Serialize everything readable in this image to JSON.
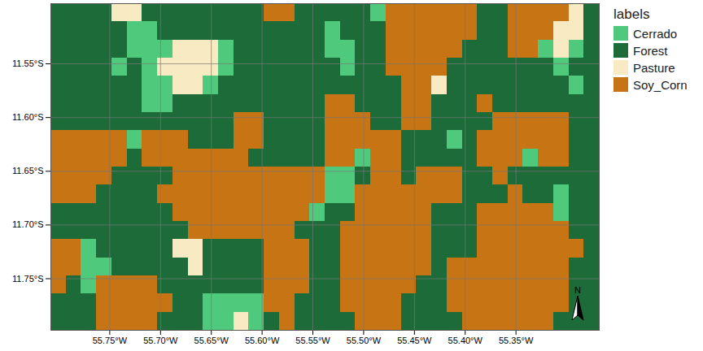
{
  "chart_data": {
    "type": "raster",
    "legend_title": "labels",
    "categories": [
      "Cerrado",
      "Forest",
      "Pasture",
      "Soy_Corn"
    ],
    "colors": [
      "#4fca7c",
      "#1c6b38",
      "#f8eac2",
      "#c77414"
    ],
    "legend": "right",
    "grid": true,
    "annotations": [
      "N"
    ],
    "xlim": [
      -55.808,
      -55.268
    ],
    "ylim": [
      -11.798,
      -11.494
    ],
    "xticks": [
      {
        "value": -55.75,
        "label": "55.75°W"
      },
      {
        "value": -55.7,
        "label": "55.70°W"
      },
      {
        "value": -55.65,
        "label": "55.65°W"
      },
      {
        "value": -55.6,
        "label": "55.60°W"
      },
      {
        "value": -55.55,
        "label": "55.55°W"
      },
      {
        "value": -55.5,
        "label": "55.50°W"
      },
      {
        "value": -55.45,
        "label": "55.45°W"
      },
      {
        "value": -55.4,
        "label": "55.40°W"
      },
      {
        "value": -55.35,
        "label": "55.35°W"
      }
    ],
    "yticks": [
      {
        "value": -11.55,
        "label": "11.55°S"
      },
      {
        "value": -11.6,
        "label": "11.60°S"
      },
      {
        "value": -11.65,
        "label": "11.65°S"
      },
      {
        "value": -11.7,
        "label": "11.70°S"
      },
      {
        "value": -11.75,
        "label": "11.75°S"
      }
    ],
    "cells": [
      [
        1,
        1,
        1,
        1,
        2,
        2,
        1,
        1,
        1,
        1,
        1,
        1,
        1,
        1,
        3,
        3,
        1,
        1,
        1,
        1,
        1,
        0,
        3,
        3,
        3,
        3,
        3,
        3,
        1,
        1,
        3,
        3,
        3,
        3,
        2,
        1
      ],
      [
        1,
        1,
        1,
        1,
        1,
        0,
        0,
        1,
        1,
        1,
        1,
        1,
        1,
        1,
        1,
        1,
        1,
        1,
        0,
        1,
        1,
        1,
        3,
        3,
        3,
        3,
        3,
        3,
        1,
        1,
        3,
        3,
        3,
        2,
        2,
        1
      ],
      [
        1,
        1,
        1,
        1,
        1,
        0,
        0,
        0,
        2,
        2,
        2,
        0,
        1,
        1,
        1,
        1,
        1,
        1,
        0,
        0,
        1,
        1,
        3,
        3,
        3,
        3,
        3,
        1,
        1,
        1,
        3,
        3,
        0,
        2,
        0,
        1
      ],
      [
        1,
        1,
        1,
        1,
        0,
        1,
        0,
        2,
        2,
        2,
        2,
        0,
        1,
        1,
        1,
        1,
        1,
        1,
        1,
        0,
        1,
        1,
        3,
        3,
        3,
        3,
        1,
        1,
        1,
        1,
        1,
        1,
        1,
        0,
        1,
        1
      ],
      [
        1,
        1,
        1,
        1,
        1,
        1,
        0,
        0,
        2,
        2,
        0,
        1,
        1,
        1,
        1,
        1,
        1,
        1,
        1,
        1,
        1,
        1,
        1,
        3,
        3,
        2,
        1,
        1,
        1,
        1,
        1,
        1,
        1,
        1,
        0,
        1
      ],
      [
        1,
        1,
        1,
        1,
        1,
        1,
        0,
        0,
        1,
        1,
        1,
        1,
        1,
        1,
        1,
        1,
        1,
        1,
        3,
        3,
        1,
        1,
        1,
        3,
        3,
        1,
        1,
        1,
        3,
        1,
        1,
        1,
        1,
        1,
        1,
        1
      ],
      [
        1,
        1,
        1,
        1,
        1,
        1,
        1,
        1,
        1,
        1,
        1,
        1,
        3,
        3,
        1,
        1,
        1,
        1,
        3,
        3,
        3,
        1,
        1,
        3,
        3,
        1,
        1,
        1,
        1,
        3,
        3,
        3,
        3,
        3,
        1,
        1
      ],
      [
        3,
        3,
        3,
        3,
        3,
        0,
        3,
        3,
        3,
        1,
        1,
        1,
        3,
        3,
        1,
        1,
        1,
        1,
        3,
        3,
        3,
        3,
        3,
        1,
        1,
        1,
        0,
        1,
        3,
        3,
        3,
        3,
        3,
        3,
        1,
        1
      ],
      [
        3,
        3,
        3,
        3,
        3,
        1,
        3,
        3,
        3,
        3,
        3,
        3,
        3,
        1,
        1,
        1,
        1,
        1,
        3,
        3,
        0,
        3,
        3,
        1,
        1,
        1,
        1,
        1,
        3,
        3,
        3,
        0,
        3,
        3,
        1,
        1
      ],
      [
        3,
        3,
        3,
        3,
        1,
        1,
        1,
        1,
        3,
        3,
        3,
        3,
        3,
        3,
        3,
        3,
        3,
        3,
        0,
        0,
        1,
        3,
        3,
        1,
        3,
        3,
        3,
        1,
        1,
        3,
        1,
        1,
        1,
        1,
        1,
        1
      ],
      [
        3,
        3,
        3,
        1,
        1,
        1,
        1,
        3,
        3,
        3,
        3,
        3,
        3,
        3,
        3,
        3,
        3,
        3,
        0,
        0,
        3,
        3,
        3,
        3,
        3,
        3,
        3,
        1,
        1,
        1,
        3,
        1,
        1,
        0,
        1,
        1
      ],
      [
        1,
        1,
        1,
        1,
        1,
        1,
        1,
        1,
        3,
        3,
        3,
        3,
        3,
        3,
        3,
        3,
        3,
        0,
        1,
        1,
        3,
        3,
        3,
        3,
        3,
        1,
        1,
        1,
        3,
        3,
        3,
        3,
        3,
        0,
        1,
        1
      ],
      [
        1,
        1,
        1,
        1,
        1,
        1,
        1,
        1,
        1,
        3,
        3,
        3,
        3,
        3,
        3,
        3,
        1,
        1,
        1,
        3,
        3,
        3,
        3,
        3,
        3,
        1,
        1,
        1,
        3,
        3,
        3,
        3,
        3,
        3,
        1,
        1
      ],
      [
        3,
        3,
        0,
        1,
        1,
        1,
        1,
        1,
        2,
        2,
        1,
        1,
        1,
        1,
        3,
        3,
        3,
        1,
        1,
        3,
        3,
        3,
        3,
        3,
        3,
        1,
        1,
        1,
        3,
        3,
        3,
        3,
        3,
        3,
        3,
        1
      ],
      [
        3,
        3,
        0,
        0,
        1,
        1,
        1,
        1,
        1,
        2,
        1,
        1,
        1,
        1,
        3,
        3,
        3,
        1,
        1,
        3,
        3,
        3,
        3,
        3,
        3,
        1,
        3,
        3,
        3,
        3,
        3,
        3,
        3,
        3,
        1,
        1
      ],
      [
        3,
        1,
        0,
        3,
        3,
        3,
        3,
        1,
        1,
        1,
        1,
        1,
        1,
        1,
        3,
        3,
        3,
        1,
        1,
        3,
        3,
        3,
        3,
        3,
        1,
        1,
        3,
        3,
        3,
        3,
        3,
        3,
        3,
        3,
        1,
        1
      ],
      [
        1,
        1,
        1,
        3,
        3,
        3,
        3,
        3,
        1,
        1,
        0,
        0,
        0,
        0,
        3,
        3,
        1,
        1,
        1,
        3,
        3,
        3,
        3,
        1,
        1,
        1,
        3,
        3,
        3,
        3,
        3,
        3,
        3,
        3,
        1,
        1
      ],
      [
        1,
        1,
        1,
        3,
        3,
        3,
        3,
        1,
        1,
        1,
        0,
        0,
        2,
        0,
        1,
        3,
        1,
        1,
        1,
        1,
        3,
        3,
        3,
        1,
        1,
        1,
        1,
        3,
        3,
        3,
        3,
        3,
        3,
        1,
        1,
        1
      ]
    ]
  }
}
